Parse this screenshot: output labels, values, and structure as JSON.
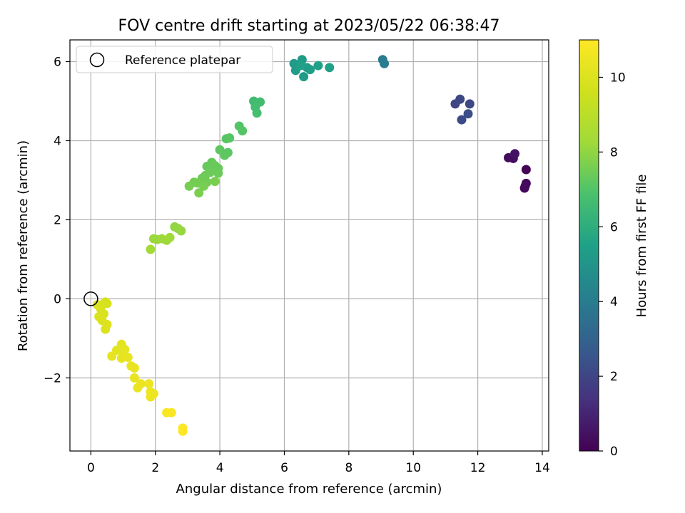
{
  "chart_data": {
    "type": "scatter",
    "title": "FOV centre drift starting at 2023/05/22 06:38:47",
    "xlabel": "Angular distance from reference (arcmin)",
    "ylabel": "Rotation from reference (arcmin)",
    "xlim": [
      -0.65,
      14.2
    ],
    "ylim": [
      -3.85,
      6.55
    ],
    "xticks": [
      0,
      2,
      4,
      6,
      8,
      10,
      12,
      14
    ],
    "yticks": [
      -2,
      0,
      2,
      4,
      6
    ],
    "grid": true,
    "legend": {
      "position": "upper-left",
      "entries": [
        "Reference platepar"
      ]
    },
    "reference_point": {
      "x": 0,
      "y": 0
    },
    "colorbar": {
      "label": "Hours from first FF file",
      "range": [
        0,
        11
      ],
      "ticks": [
        0,
        2,
        4,
        6,
        8,
        10
      ],
      "colormap": "viridis"
    },
    "points": [
      {
        "x": 13.5,
        "y": 3.27,
        "c": 0.1
      },
      {
        "x": 13.45,
        "y": 2.8,
        "c": 0.15
      },
      {
        "x": 13.5,
        "y": 2.92,
        "c": 0.2
      },
      {
        "x": 13.47,
        "y": 2.85,
        "c": 0.25
      },
      {
        "x": 12.95,
        "y": 3.57,
        "c": 0.3
      },
      {
        "x": 13.1,
        "y": 3.55,
        "c": 0.4
      },
      {
        "x": 13.15,
        "y": 3.67,
        "c": 0.5
      },
      {
        "x": 11.3,
        "y": 4.93,
        "c": 2.0
      },
      {
        "x": 11.45,
        "y": 5.05,
        "c": 2.05
      },
      {
        "x": 11.75,
        "y": 4.93,
        "c": 2.1
      },
      {
        "x": 11.5,
        "y": 4.53,
        "c": 2.2
      },
      {
        "x": 11.7,
        "y": 4.68,
        "c": 2.25
      },
      {
        "x": 9.05,
        "y": 6.05,
        "c": 4.0
      },
      {
        "x": 9.1,
        "y": 5.95,
        "c": 4.05
      },
      {
        "x": 6.3,
        "y": 5.95,
        "c": 5.2
      },
      {
        "x": 6.55,
        "y": 6.05,
        "c": 5.25
      },
      {
        "x": 6.35,
        "y": 5.78,
        "c": 5.3
      },
      {
        "x": 6.7,
        "y": 5.85,
        "c": 5.3
      },
      {
        "x": 6.6,
        "y": 5.62,
        "c": 5.35
      },
      {
        "x": 6.8,
        "y": 5.8,
        "c": 5.4
      },
      {
        "x": 6.5,
        "y": 5.9,
        "c": 5.45
      },
      {
        "x": 7.05,
        "y": 5.9,
        "c": 5.5
      },
      {
        "x": 7.4,
        "y": 5.85,
        "c": 5.5
      },
      {
        "x": 5.05,
        "y": 5.0,
        "c": 6.6
      },
      {
        "x": 5.25,
        "y": 4.98,
        "c": 6.65
      },
      {
        "x": 5.1,
        "y": 4.85,
        "c": 6.7
      },
      {
        "x": 5.15,
        "y": 4.7,
        "c": 6.75
      },
      {
        "x": 4.6,
        "y": 4.37,
        "c": 7.0
      },
      {
        "x": 4.7,
        "y": 4.25,
        "c": 7.05
      },
      {
        "x": 4.2,
        "y": 4.05,
        "c": 7.1
      },
      {
        "x": 4.3,
        "y": 4.07,
        "c": 7.1
      },
      {
        "x": 4.25,
        "y": 3.7,
        "c": 7.15
      },
      {
        "x": 4.15,
        "y": 3.63,
        "c": 7.2
      },
      {
        "x": 4.0,
        "y": 3.77,
        "c": 7.2
      },
      {
        "x": 3.75,
        "y": 3.45,
        "c": 7.3
      },
      {
        "x": 3.6,
        "y": 3.35,
        "c": 7.3
      },
      {
        "x": 3.85,
        "y": 3.37,
        "c": 7.35
      },
      {
        "x": 3.95,
        "y": 3.3,
        "c": 7.35
      },
      {
        "x": 3.7,
        "y": 3.2,
        "c": 7.4
      },
      {
        "x": 3.95,
        "y": 3.18,
        "c": 7.4
      },
      {
        "x": 3.55,
        "y": 3.12,
        "c": 7.45
      },
      {
        "x": 3.45,
        "y": 3.05,
        "c": 7.45
      },
      {
        "x": 3.6,
        "y": 2.95,
        "c": 7.5
      },
      {
        "x": 3.4,
        "y": 2.92,
        "c": 7.5
      },
      {
        "x": 3.3,
        "y": 2.93,
        "c": 7.55
      },
      {
        "x": 3.2,
        "y": 2.95,
        "c": 7.55
      },
      {
        "x": 3.05,
        "y": 2.85,
        "c": 7.6
      },
      {
        "x": 3.5,
        "y": 2.85,
        "c": 7.6
      },
      {
        "x": 3.35,
        "y": 2.68,
        "c": 7.65
      },
      {
        "x": 3.85,
        "y": 2.97,
        "c": 7.65
      },
      {
        "x": 2.6,
        "y": 1.82,
        "c": 8.0
      },
      {
        "x": 2.7,
        "y": 1.78,
        "c": 8.05
      },
      {
        "x": 2.8,
        "y": 1.72,
        "c": 8.1
      },
      {
        "x": 2.05,
        "y": 1.5,
        "c": 8.15
      },
      {
        "x": 1.95,
        "y": 1.52,
        "c": 8.15
      },
      {
        "x": 2.2,
        "y": 1.52,
        "c": 8.2
      },
      {
        "x": 2.35,
        "y": 1.48,
        "c": 8.2
      },
      {
        "x": 2.45,
        "y": 1.55,
        "c": 8.25
      },
      {
        "x": 1.85,
        "y": 1.25,
        "c": 8.3
      },
      {
        "x": 0.45,
        "y": -0.08,
        "c": 9.8
      },
      {
        "x": 0.35,
        "y": -0.15,
        "c": 9.8
      },
      {
        "x": 0.5,
        "y": -0.12,
        "c": 9.85
      },
      {
        "x": 0.2,
        "y": -0.15,
        "c": 9.85
      },
      {
        "x": 0.3,
        "y": -0.25,
        "c": 9.9
      },
      {
        "x": 0.4,
        "y": -0.38,
        "c": 9.9
      },
      {
        "x": 0.25,
        "y": -0.45,
        "c": 9.95
      },
      {
        "x": 0.35,
        "y": -0.55,
        "c": 9.95
      },
      {
        "x": 0.5,
        "y": -0.65,
        "c": 10.0
      },
      {
        "x": 0.45,
        "y": -0.77,
        "c": 10.0
      },
      {
        "x": 0.95,
        "y": -1.15,
        "c": 10.2
      },
      {
        "x": 0.8,
        "y": -1.3,
        "c": 10.2
      },
      {
        "x": 1.0,
        "y": -1.35,
        "c": 10.25
      },
      {
        "x": 1.05,
        "y": -1.28,
        "c": 10.25
      },
      {
        "x": 0.65,
        "y": -1.45,
        "c": 10.3
      },
      {
        "x": 0.95,
        "y": -1.5,
        "c": 10.3
      },
      {
        "x": 1.15,
        "y": -1.48,
        "c": 10.35
      },
      {
        "x": 1.25,
        "y": -1.7,
        "c": 10.35
      },
      {
        "x": 1.35,
        "y": -1.75,
        "c": 10.4
      },
      {
        "x": 1.35,
        "y": -2.0,
        "c": 10.4
      },
      {
        "x": 1.55,
        "y": -2.15,
        "c": 10.45
      },
      {
        "x": 1.45,
        "y": -2.25,
        "c": 10.45
      },
      {
        "x": 1.8,
        "y": -2.15,
        "c": 10.5
      },
      {
        "x": 1.85,
        "y": -2.35,
        "c": 10.5
      },
      {
        "x": 1.95,
        "y": -2.4,
        "c": 10.55
      },
      {
        "x": 1.85,
        "y": -2.48,
        "c": 10.55
      },
      {
        "x": 2.35,
        "y": -2.88,
        "c": 10.9
      },
      {
        "x": 2.5,
        "y": -2.88,
        "c": 10.9
      },
      {
        "x": 2.85,
        "y": -3.27,
        "c": 11.0
      },
      {
        "x": 2.85,
        "y": -3.35,
        "c": 11.0
      }
    ]
  }
}
